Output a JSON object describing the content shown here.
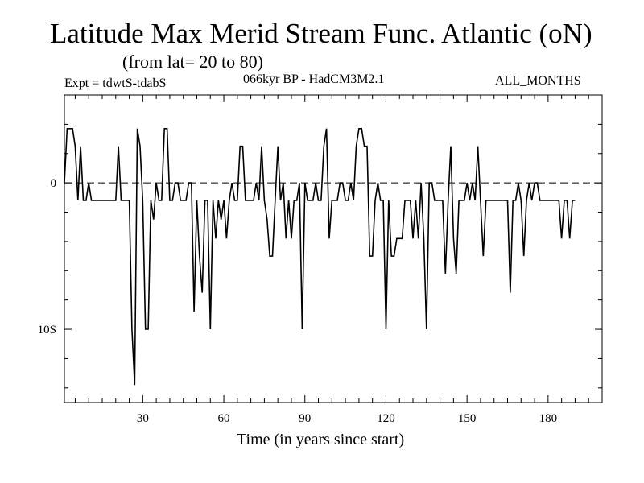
{
  "header": {
    "title": "Latitude Max Merid Stream Func. Atlantic (oN)",
    "subtitle": "(from lat= 20 to 80)",
    "expt": "Expt = tdwtS-tdabS",
    "model": "066kyr BP - HadCM3M2.1",
    "months": "ALL_MONTHS"
  },
  "chart_data": {
    "type": "line",
    "title": "Latitude Max Merid Stream Func. Atlantic (oN)",
    "subtitle": "(from lat= 20 to 80)",
    "xlabel": "Time (in years since start)",
    "ylabel": "",
    "xlim": [
      1,
      200
    ],
    "ylim": [
      -15,
      6
    ],
    "x_ticks": [
      {
        "value": 30,
        "label": "30"
      },
      {
        "value": 60,
        "label": "60"
      },
      {
        "value": 90,
        "label": "90"
      },
      {
        "value": 120,
        "label": "120"
      },
      {
        "value": 150,
        "label": "150"
      },
      {
        "value": 180,
        "label": "180"
      }
    ],
    "y_ticks": [
      {
        "value": 0,
        "label": "0"
      },
      {
        "value": -10,
        "label": "10S"
      }
    ],
    "reference_line": {
      "y": 0,
      "style": "dashed"
    },
    "series": [
      {
        "name": "Latitude Max Merid Stream Func.",
        "points": [
          [
            1,
            0
          ],
          [
            2,
            3.7
          ],
          [
            3,
            3.7
          ],
          [
            4,
            3.7
          ],
          [
            5,
            2.5
          ],
          [
            6,
            -1.2
          ],
          [
            7,
            2.5
          ],
          [
            8,
            -1.2
          ],
          [
            9,
            -1.2
          ],
          [
            10,
            0
          ],
          [
            11,
            -1.2
          ],
          [
            12,
            -1.2
          ],
          [
            13,
            -1.2
          ],
          [
            14,
            -1.2
          ],
          [
            15,
            -1.2
          ],
          [
            16,
            -1.2
          ],
          [
            17,
            -1.2
          ],
          [
            18,
            -1.2
          ],
          [
            19,
            -1.2
          ],
          [
            20,
            -1.2
          ],
          [
            21,
            2.5
          ],
          [
            22,
            -1.2
          ],
          [
            23,
            -1.2
          ],
          [
            24,
            -1.2
          ],
          [
            25,
            -1.2
          ],
          [
            26,
            -10
          ],
          [
            27,
            -13.8
          ],
          [
            28,
            3.7
          ],
          [
            29,
            2.5
          ],
          [
            30,
            -1.2
          ],
          [
            31,
            -10
          ],
          [
            32,
            -10
          ],
          [
            33,
            -1.2
          ],
          [
            34,
            -2.5
          ],
          [
            35,
            0
          ],
          [
            36,
            -1.2
          ],
          [
            37,
            -1.2
          ],
          [
            38,
            3.7
          ],
          [
            39,
            3.7
          ],
          [
            40,
            -1.2
          ],
          [
            41,
            -1.2
          ],
          [
            42,
            0
          ],
          [
            43,
            0
          ],
          [
            44,
            -1.2
          ],
          [
            45,
            -1.2
          ],
          [
            46,
            -1.2
          ],
          [
            47,
            0
          ],
          [
            48,
            0
          ],
          [
            49,
            -8.8
          ],
          [
            50,
            -1.2
          ],
          [
            51,
            -5
          ],
          [
            52,
            -7.5
          ],
          [
            53,
            -1.2
          ],
          [
            54,
            -1.2
          ],
          [
            55,
            -10
          ],
          [
            56,
            -1.2
          ],
          [
            57,
            -3.8
          ],
          [
            58,
            -1.2
          ],
          [
            59,
            -2.5
          ],
          [
            60,
            -1.2
          ],
          [
            61,
            -3.8
          ],
          [
            62,
            -1.2
          ],
          [
            63,
            0
          ],
          [
            64,
            -1.2
          ],
          [
            65,
            -1.2
          ],
          [
            66,
            2.5
          ],
          [
            67,
            2.5
          ],
          [
            68,
            -1.2
          ],
          [
            69,
            -1.2
          ],
          [
            70,
            -1.2
          ],
          [
            71,
            -1.2
          ],
          [
            72,
            0
          ],
          [
            73,
            -1.2
          ],
          [
            74,
            2.5
          ],
          [
            75,
            -1.2
          ],
          [
            76,
            -2.5
          ],
          [
            77,
            -5
          ],
          [
            78,
            -5
          ],
          [
            79,
            -1.2
          ],
          [
            80,
            2.5
          ],
          [
            81,
            -1.2
          ],
          [
            82,
            0
          ],
          [
            83,
            -3.8
          ],
          [
            84,
            -1.2
          ],
          [
            85,
            -3.8
          ],
          [
            86,
            -1.2
          ],
          [
            87,
            -1.2
          ],
          [
            88,
            0
          ],
          [
            89,
            -10
          ],
          [
            90,
            0
          ],
          [
            91,
            -1.2
          ],
          [
            92,
            -1.2
          ],
          [
            93,
            -1.2
          ],
          [
            94,
            0
          ],
          [
            95,
            -1.2
          ],
          [
            96,
            -1.2
          ],
          [
            97,
            2.5
          ],
          [
            98,
            3.7
          ],
          [
            99,
            -3.8
          ],
          [
            100,
            -1.2
          ],
          [
            101,
            -1.2
          ],
          [
            102,
            -1.2
          ],
          [
            103,
            0
          ],
          [
            104,
            0
          ],
          [
            105,
            -1.2
          ],
          [
            106,
            -1.2
          ],
          [
            107,
            0
          ],
          [
            108,
            -1.2
          ],
          [
            109,
            2.5
          ],
          [
            110,
            3.7
          ],
          [
            111,
            3.7
          ],
          [
            112,
            2.5
          ],
          [
            113,
            2.5
          ],
          [
            114,
            -5
          ],
          [
            115,
            -5
          ],
          [
            116,
            -1.2
          ],
          [
            117,
            0
          ],
          [
            118,
            -1.2
          ],
          [
            119,
            -1.2
          ],
          [
            120,
            -10
          ],
          [
            121,
            -1.2
          ],
          [
            122,
            -5
          ],
          [
            123,
            -5
          ],
          [
            124,
            -3.8
          ],
          [
            125,
            -3.8
          ],
          [
            126,
            -3.8
          ],
          [
            127,
            -1.2
          ],
          [
            128,
            -1.2
          ],
          [
            129,
            -1.2
          ],
          [
            130,
            -3.8
          ],
          [
            131,
            -1.2
          ],
          [
            132,
            -3.8
          ],
          [
            133,
            0
          ],
          [
            134,
            -3.8
          ],
          [
            135,
            -10
          ],
          [
            136,
            0
          ],
          [
            137,
            0
          ],
          [
            138,
            -1.2
          ],
          [
            139,
            -1.2
          ],
          [
            140,
            -1.2
          ],
          [
            141,
            -1.2
          ],
          [
            142,
            -6.2
          ],
          [
            143,
            -1.2
          ],
          [
            144,
            2.5
          ],
          [
            145,
            -3.8
          ],
          [
            146,
            -6.2
          ],
          [
            147,
            -1.2
          ],
          [
            148,
            -1.2
          ],
          [
            149,
            -1.2
          ],
          [
            150,
            0
          ],
          [
            151,
            -1.2
          ],
          [
            152,
            0
          ],
          [
            153,
            -1.2
          ],
          [
            154,
            2.5
          ],
          [
            155,
            -1.2
          ],
          [
            156,
            -5
          ],
          [
            157,
            -1.2
          ],
          [
            158,
            -1.2
          ],
          [
            159,
            -1.2
          ],
          [
            160,
            -1.2
          ],
          [
            161,
            -1.2
          ],
          [
            162,
            -1.2
          ],
          [
            163,
            -1.2
          ],
          [
            164,
            -1.2
          ],
          [
            165,
            -1.2
          ],
          [
            166,
            -7.5
          ],
          [
            167,
            -1.2
          ],
          [
            168,
            -1.2
          ],
          [
            169,
            0
          ],
          [
            170,
            -1.2
          ],
          [
            171,
            -5
          ],
          [
            172,
            -1.2
          ],
          [
            173,
            0
          ],
          [
            174,
            -1.2
          ],
          [
            175,
            0
          ],
          [
            176,
            0
          ],
          [
            177,
            -1.2
          ],
          [
            178,
            -1.2
          ],
          [
            179,
            -1.2
          ],
          [
            180,
            -1.2
          ],
          [
            181,
            -1.2
          ],
          [
            182,
            -1.2
          ],
          [
            183,
            -1.2
          ],
          [
            184,
            -1.2
          ],
          [
            185,
            -3.8
          ],
          [
            186,
            -1.2
          ],
          [
            187,
            -1.2
          ],
          [
            188,
            -3.8
          ],
          [
            189,
            -1.2
          ],
          [
            190,
            -1.2
          ]
        ]
      }
    ]
  }
}
